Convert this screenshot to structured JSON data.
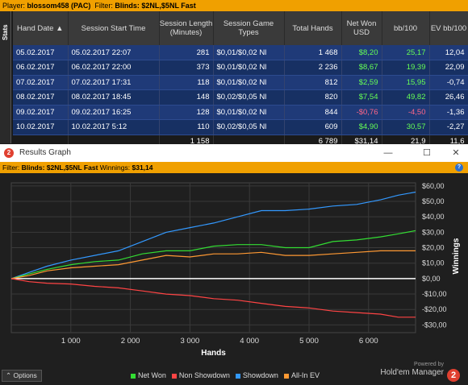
{
  "topbar": {
    "player_label": "Player:",
    "player": "blossom458 (PAC)",
    "filter_label": "Filter:",
    "filter": "Blinds: $2NL,$5NL Fast"
  },
  "side_tab": "Stats",
  "table": {
    "headers": [
      "Hand Date",
      "Session Start Time",
      "Session Length (Minutes)",
      "Session Game Types",
      "Total Hands",
      "Net Won USD",
      "bb/100",
      "EV bb/100"
    ],
    "rows": [
      [
        "05.02.2017",
        "05.02.2017 22:07",
        "281",
        "$0,01/$0,02 Nl",
        "1 468",
        "$8,20",
        "25,17",
        "12,04"
      ],
      [
        "06.02.2017",
        "06.02.2017 22:00",
        "373",
        "$0,01/$0,02 Nl",
        "2 236",
        "$8,67",
        "19,39",
        "22,09"
      ],
      [
        "07.02.2017",
        "07.02.2017 17:31",
        "118",
        "$0,01/$0,02 Nl",
        "812",
        "$2,59",
        "15,95",
        "-0,74"
      ],
      [
        "08.02.2017",
        "08.02.2017 18:45",
        "148",
        "$0,02/$0,05 Nl",
        "820",
        "$7,54",
        "49,82",
        "26,46"
      ],
      [
        "09.02.2017",
        "09.02.2017 16:25",
        "128",
        "$0,01/$0,02 Nl",
        "844",
        "-$0,76",
        "-4,50",
        "-1,36"
      ],
      [
        "10.02.2017",
        "10.02.2017 5:12",
        "110",
        "$0,02/$0,05 Nl",
        "609",
        "$4,90",
        "30,57",
        "-2,27"
      ]
    ],
    "totals": [
      "",
      "",
      "1 158",
      "",
      "6 789",
      "$31,14",
      "21,9",
      "11,6"
    ]
  },
  "window": {
    "title": "Results Graph",
    "min": "—",
    "max": "☐",
    "close": "✕",
    "filter_label": "Filter:",
    "filter": "Blinds: $2NL,$5NL Fast",
    "winnings_label": "Winnings:",
    "winnings": "$31,14",
    "help": "?"
  },
  "options_label": "Options",
  "legend": [
    {
      "name": "Net Won",
      "color": "#33dd33"
    },
    {
      "name": "Non Showdown",
      "color": "#ff4444"
    },
    {
      "name": "Showdown",
      "color": "#3399ff"
    },
    {
      "name": "All-In EV",
      "color": "#ff9933"
    }
  ],
  "brand": {
    "powered_by": "Powered by",
    "name": "Hold'em Manager"
  },
  "chart_data": {
    "type": "line",
    "xlabel": "Hands",
    "ylabel": "Winnings",
    "xlim": [
      0,
      6789
    ],
    "ylim": [
      -35,
      62
    ],
    "xticks": [
      1000,
      2000,
      3000,
      4000,
      5000,
      6000
    ],
    "xtick_labels": [
      "1 000",
      "2 000",
      "3 000",
      "4 000",
      "5 000",
      "6 000"
    ],
    "yticks": [
      60,
      50,
      40,
      30,
      20,
      10,
      0,
      -10,
      -20,
      -30
    ],
    "ytick_labels": [
      "$60,00",
      "$50,00",
      "$40,00",
      "$30,00",
      "$20,00",
      "$10,00",
      "$0,00",
      "-$10,00",
      "-$20,00",
      "-$30,00"
    ],
    "grid": true,
    "series": [
      {
        "name": "Showdown",
        "color": "#3399ff",
        "x": [
          0,
          300,
          600,
          1000,
          1400,
          1800,
          2200,
          2600,
          3000,
          3400,
          3800,
          4200,
          4600,
          5000,
          5400,
          5800,
          6200,
          6500,
          6789
        ],
        "y": [
          0,
          4,
          8,
          12,
          15,
          18,
          24,
          30,
          33,
          36,
          40,
          44,
          44,
          45,
          47,
          48,
          51,
          54,
          56
        ]
      },
      {
        "name": "Net Won",
        "color": "#33dd33",
        "x": [
          0,
          300,
          600,
          1000,
          1400,
          1800,
          2200,
          2600,
          3000,
          3400,
          3800,
          4200,
          4600,
          5000,
          5400,
          5800,
          6200,
          6500,
          6789
        ],
        "y": [
          0,
          3,
          6,
          9,
          11,
          12,
          16,
          18,
          18,
          21,
          22,
          22,
          20,
          20,
          24,
          25,
          27,
          29,
          31
        ]
      },
      {
        "name": "All-In EV",
        "color": "#ff9933",
        "x": [
          0,
          300,
          600,
          1000,
          1400,
          1800,
          2200,
          2600,
          3000,
          3400,
          3800,
          4200,
          4600,
          5000,
          5400,
          5800,
          6200,
          6500,
          6789
        ],
        "y": [
          0,
          2,
          5,
          7,
          8,
          9,
          12,
          15,
          14,
          16,
          16,
          17,
          15,
          15,
          16,
          17,
          18,
          18,
          18
        ]
      },
      {
        "name": "Non Showdown",
        "color": "#ff4444",
        "x": [
          0,
          300,
          600,
          1000,
          1400,
          1800,
          2200,
          2600,
          3000,
          3400,
          3800,
          4200,
          4600,
          5000,
          5400,
          5800,
          6200,
          6500,
          6789
        ],
        "y": [
          0,
          -2,
          -3,
          -3.5,
          -5,
          -6,
          -8,
          -10,
          -11,
          -13,
          -14,
          -16,
          -18,
          -19,
          -21,
          -22,
          -23,
          -25,
          -25
        ]
      }
    ]
  }
}
